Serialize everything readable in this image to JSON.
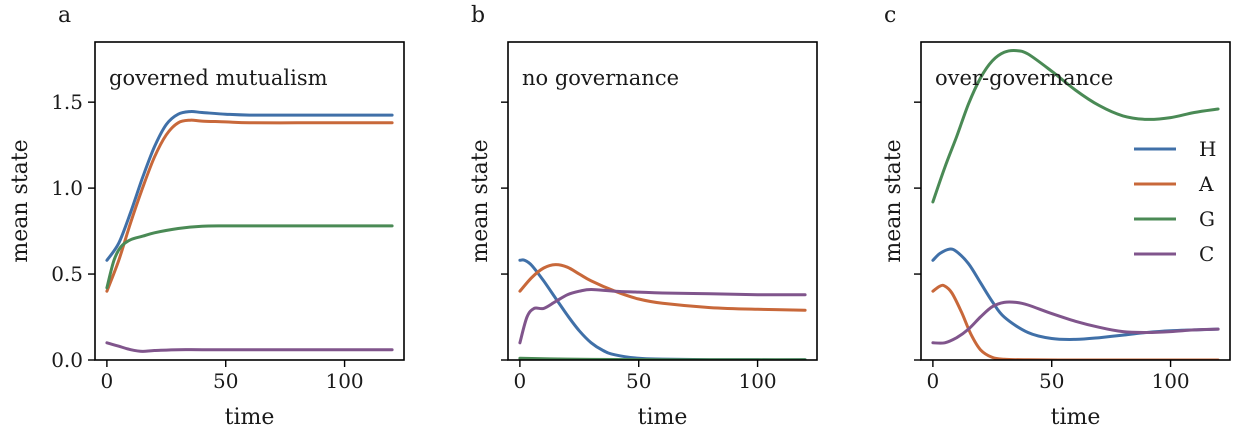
{
  "chart_data": [
    {
      "type": "line",
      "panel_letter": "a",
      "title": "governed mutualism",
      "xlabel": "time",
      "ylabel": "mean state",
      "xlim": [
        -5,
        125
      ],
      "ylim": [
        0,
        1.85
      ],
      "xticks": [
        0,
        50,
        100
      ],
      "yticks": [
        0.0,
        0.5,
        1.0,
        1.5
      ],
      "ytick_labels_visible": true,
      "legend": false,
      "grid": false,
      "series": [
        {
          "name": "H",
          "color": "#4070a8",
          "x": [
            0,
            5,
            10,
            15,
            20,
            25,
            30,
            35,
            40,
            50,
            60,
            80,
            100,
            120
          ],
          "y": [
            0.58,
            0.68,
            0.86,
            1.06,
            1.24,
            1.37,
            1.43,
            1.445,
            1.44,
            1.43,
            1.425,
            1.425,
            1.425,
            1.425
          ]
        },
        {
          "name": "A",
          "color": "#c8683a",
          "x": [
            0,
            5,
            10,
            15,
            20,
            25,
            30,
            35,
            40,
            50,
            60,
            80,
            100,
            120
          ],
          "y": [
            0.4,
            0.58,
            0.8,
            1.0,
            1.18,
            1.31,
            1.38,
            1.395,
            1.39,
            1.385,
            1.38,
            1.38,
            1.38,
            1.38
          ]
        },
        {
          "name": "G",
          "color": "#4a8a55",
          "x": [
            0,
            3,
            6,
            10,
            15,
            20,
            30,
            40,
            50,
            60,
            80,
            100,
            120
          ],
          "y": [
            0.42,
            0.58,
            0.66,
            0.7,
            0.72,
            0.74,
            0.765,
            0.778,
            0.78,
            0.78,
            0.78,
            0.78,
            0.78
          ]
        },
        {
          "name": "C",
          "color": "#80558c",
          "x": [
            0,
            5,
            10,
            15,
            20,
            30,
            40,
            60,
            80,
            100,
            120
          ],
          "y": [
            0.1,
            0.08,
            0.06,
            0.05,
            0.055,
            0.06,
            0.06,
            0.06,
            0.06,
            0.06,
            0.06
          ]
        }
      ]
    },
    {
      "type": "line",
      "panel_letter": "b",
      "title": "no governance",
      "xlabel": "time",
      "ylabel": "mean state",
      "xlim": [
        -5,
        125
      ],
      "ylim": [
        0,
        1.85
      ],
      "xticks": [
        0,
        50,
        100
      ],
      "yticks": [
        0.0,
        0.5,
        1.0,
        1.5
      ],
      "ytick_labels_visible": false,
      "legend": false,
      "grid": false,
      "series": [
        {
          "name": "H",
          "color": "#4070a8",
          "x": [
            0,
            2,
            5,
            10,
            15,
            20,
            25,
            30,
            35,
            40,
            50,
            60,
            80,
            100,
            120
          ],
          "y": [
            0.58,
            0.58,
            0.55,
            0.46,
            0.36,
            0.26,
            0.17,
            0.1,
            0.055,
            0.03,
            0.01,
            0.005,
            0.002,
            0.001,
            0.001
          ]
        },
        {
          "name": "A",
          "color": "#c8683a",
          "x": [
            0,
            5,
            10,
            15,
            20,
            25,
            30,
            40,
            50,
            60,
            80,
            100,
            120
          ],
          "y": [
            0.4,
            0.48,
            0.535,
            0.555,
            0.54,
            0.5,
            0.46,
            0.4,
            0.355,
            0.33,
            0.305,
            0.295,
            0.29
          ]
        },
        {
          "name": "G",
          "color": "#4a8a55",
          "x": [
            0,
            20,
            40,
            60,
            80,
            100,
            120
          ],
          "y": [
            0.01,
            0.005,
            0.003,
            0.002,
            0.002,
            0.002,
            0.002
          ]
        },
        {
          "name": "C",
          "color": "#80558c",
          "x": [
            0,
            3,
            6,
            10,
            15,
            20,
            25,
            30,
            40,
            50,
            60,
            80,
            100,
            120
          ],
          "y": [
            0.1,
            0.25,
            0.3,
            0.3,
            0.34,
            0.38,
            0.4,
            0.41,
            0.4,
            0.395,
            0.39,
            0.385,
            0.38,
            0.38
          ]
        }
      ]
    },
    {
      "type": "line",
      "panel_letter": "c",
      "title": "over-governance",
      "xlabel": "time",
      "ylabel": "mean state",
      "xlim": [
        -5,
        125
      ],
      "ylim": [
        0,
        1.85
      ],
      "xticks": [
        0,
        50,
        100
      ],
      "yticks": [
        0.0,
        0.5,
        1.0,
        1.5
      ],
      "ytick_labels_visible": false,
      "legend": true,
      "legend_position": "right",
      "grid": false,
      "series": [
        {
          "name": "H",
          "color": "#4070a8",
          "x": [
            0,
            3,
            7,
            10,
            15,
            20,
            25,
            30,
            40,
            50,
            60,
            70,
            80,
            90,
            100,
            110,
            120
          ],
          "y": [
            0.58,
            0.62,
            0.645,
            0.63,
            0.56,
            0.45,
            0.34,
            0.25,
            0.16,
            0.125,
            0.12,
            0.13,
            0.145,
            0.16,
            0.17,
            0.175,
            0.18
          ]
        },
        {
          "name": "A",
          "color": "#c8683a",
          "x": [
            0,
            3,
            5,
            8,
            12,
            16,
            20,
            25,
            30,
            40,
            60,
            80,
            100,
            120
          ],
          "y": [
            0.4,
            0.43,
            0.43,
            0.39,
            0.28,
            0.15,
            0.06,
            0.015,
            0.004,
            0.001,
            0.0,
            0.0,
            0.0,
            0.0
          ]
        },
        {
          "name": "G",
          "color": "#4a8a55",
          "x": [
            0,
            5,
            10,
            15,
            20,
            25,
            30,
            35,
            40,
            50,
            60,
            70,
            80,
            90,
            100,
            110,
            120
          ],
          "y": [
            0.92,
            1.12,
            1.3,
            1.49,
            1.64,
            1.74,
            1.79,
            1.8,
            1.78,
            1.68,
            1.57,
            1.48,
            1.42,
            1.4,
            1.41,
            1.44,
            1.46
          ]
        },
        {
          "name": "C",
          "color": "#80558c",
          "x": [
            0,
            5,
            10,
            15,
            20,
            25,
            30,
            35,
            40,
            50,
            60,
            70,
            80,
            90,
            100,
            110,
            120
          ],
          "y": [
            0.1,
            0.1,
            0.13,
            0.18,
            0.25,
            0.31,
            0.335,
            0.335,
            0.32,
            0.27,
            0.225,
            0.19,
            0.165,
            0.16,
            0.165,
            0.175,
            0.18
          ]
        }
      ]
    }
  ]
}
